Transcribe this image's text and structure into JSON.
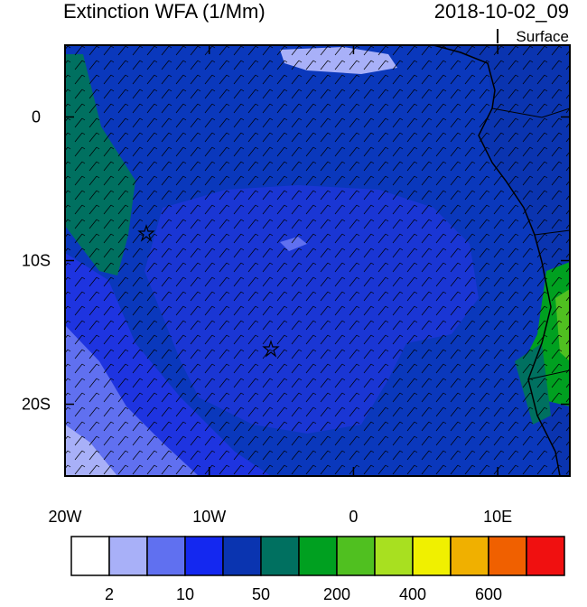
{
  "map": {
    "title": "Extinction WFA (1/Mm)",
    "date": "2018-10-02_09",
    "level": "Surface",
    "xlim": [
      -20,
      15
    ],
    "ylim": [
      -25,
      5
    ],
    "xticks": [
      {
        "value": -20,
        "label": "20W"
      },
      {
        "value": -10,
        "label": "10W"
      },
      0,
      {
        "value": 10,
        "label": "10E"
      }
    ],
    "yticks": [
      0,
      {
        "value": -10,
        "label": "10S"
      },
      {
        "value": -20,
        "label": "20S"
      }
    ]
  },
  "colorbar": {
    "colors": [
      "#ffffff",
      "#a8b0f8",
      "#6070f0",
      "#1428f0",
      "#0a34b0",
      "#007060",
      "#00a020",
      "#50c020",
      "#a8e020",
      "#f0f000",
      "#f0b000",
      "#f06000",
      "#f01010"
    ],
    "labels": [
      2,
      10,
      50,
      200,
      400,
      600
    ]
  }
}
